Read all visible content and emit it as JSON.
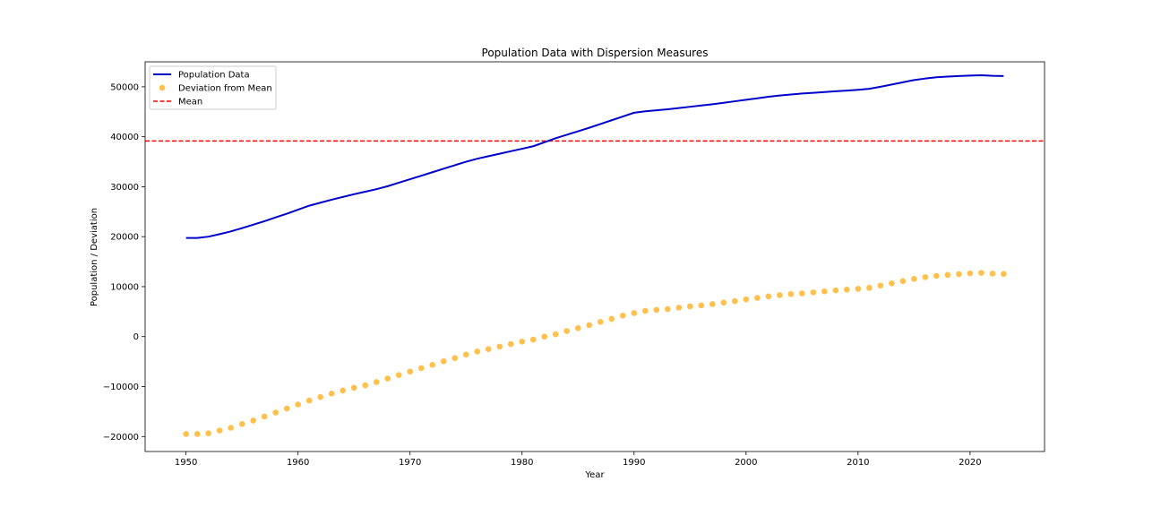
{
  "chart_data": {
    "type": "line",
    "title": "Population Data with Dispersion Measures",
    "xlabel": "Year",
    "ylabel": "Population / Deviation",
    "xlim": [
      1946.35,
      2026.65
    ],
    "ylim": [
      -23000,
      55000
    ],
    "xticks": [
      1950,
      1960,
      1970,
      1980,
      1990,
      2000,
      2010,
      2020
    ],
    "yticks": [
      -20000,
      -10000,
      0,
      10000,
      20000,
      30000,
      40000,
      50000
    ],
    "ytick_labels": [
      "−20000",
      "−10000",
      "0",
      "10000",
      "20000",
      "30000",
      "40000",
      "50000"
    ],
    "grid": false,
    "legend_position": "upper-left",
    "mean": 39150,
    "x": [
      1950,
      1951,
      1952,
      1953,
      1954,
      1955,
      1956,
      1957,
      1958,
      1959,
      1960,
      1961,
      1962,
      1963,
      1964,
      1965,
      1966,
      1967,
      1968,
      1969,
      1970,
      1971,
      1972,
      1973,
      1974,
      1975,
      1976,
      1977,
      1978,
      1979,
      1980,
      1981,
      1982,
      1983,
      1984,
      1985,
      1986,
      1987,
      1988,
      1989,
      1990,
      1991,
      1992,
      1993,
      1994,
      1995,
      1996,
      1997,
      1998,
      1999,
      2000,
      2001,
      2002,
      2003,
      2004,
      2005,
      2006,
      2007,
      2008,
      2009,
      2010,
      2011,
      2012,
      2013,
      2014,
      2015,
      2016,
      2017,
      2018,
      2019,
      2020,
      2021,
      2022,
      2023
    ],
    "series": [
      {
        "name": "Population Data",
        "kind": "line",
        "color": "#0000cc",
        "values": [
          19750,
          19750,
          20000,
          20500,
          21050,
          21700,
          22400,
          23100,
          23850,
          24600,
          25400,
          26200,
          26800,
          27400,
          27950,
          28500,
          29000,
          29500,
          30100,
          30800,
          31500,
          32200,
          32900,
          33600,
          34300,
          35000,
          35600,
          36100,
          36600,
          37100,
          37600,
          38100,
          38900,
          39700,
          40400,
          41100,
          41800,
          42550,
          43300,
          44050,
          44800,
          45100,
          45300,
          45500,
          45750,
          46000,
          46250,
          46500,
          46800,
          47100,
          47400,
          47700,
          48000,
          48250,
          48450,
          48650,
          48800,
          48950,
          49100,
          49250,
          49400,
          49600,
          50000,
          50450,
          50900,
          51350,
          51650,
          51900,
          52050,
          52150,
          52250,
          52300,
          52200,
          52150
        ],
        "display_note": ""
      },
      {
        "name": "Deviation from Mean",
        "kind": "scatter",
        "color": "#ffa500",
        "values": [
          -19500,
          -19500,
          -19350,
          -18800,
          -18250,
          -17500,
          -16800,
          -16000,
          -15200,
          -14400,
          -13600,
          -12800,
          -12100,
          -11400,
          -10800,
          -10250,
          -9750,
          -9100,
          -8400,
          -7700,
          -7000,
          -6300,
          -5650,
          -4950,
          -4300,
          -3600,
          -3000,
          -2500,
          -2000,
          -1500,
          -1000,
          -600,
          0,
          450,
          1100,
          1700,
          2300,
          2950,
          3550,
          4200,
          4700,
          5150,
          5350,
          5500,
          5800,
          6050,
          6250,
          6500,
          6800,
          7100,
          7450,
          7750,
          8050,
          8300,
          8500,
          8650,
          8850,
          9050,
          9250,
          9400,
          9550,
          9750,
          10200,
          10650,
          11100,
          11550,
          11900,
          12150,
          12350,
          12500,
          12650,
          12750,
          12600,
          12550
        ]
      },
      {
        "name": "Mean",
        "kind": "hline",
        "color": "#ff0000"
      }
    ]
  }
}
